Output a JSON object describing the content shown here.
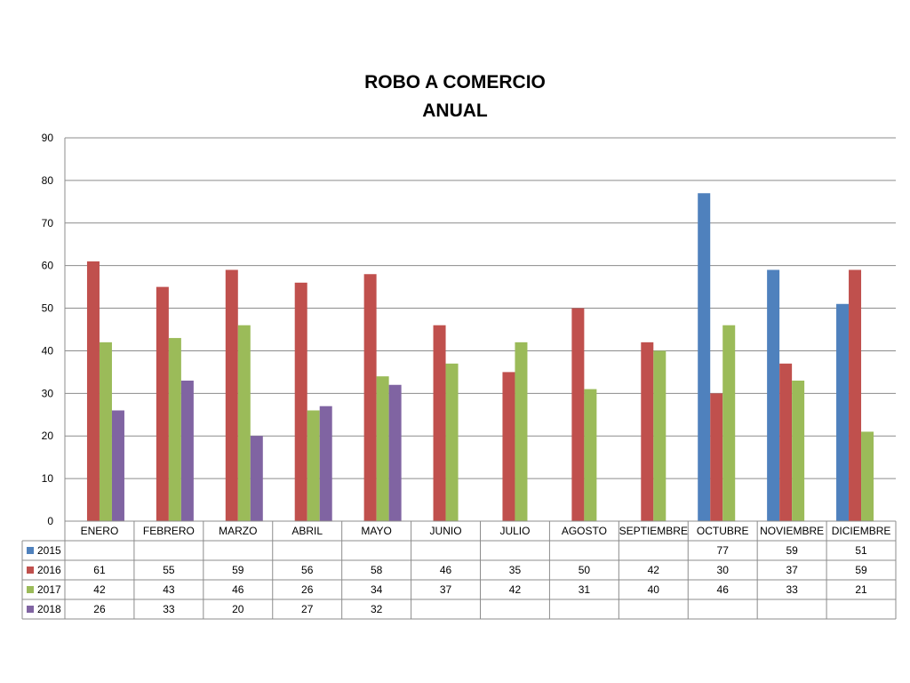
{
  "chart_data": {
    "type": "bar",
    "title": [
      "ROBO A COMERCIO",
      "ANUAL"
    ],
    "categories": [
      "ENERO",
      "FEBRERO",
      "MARZO",
      "ABRIL",
      "MAYO",
      "JUNIO",
      "JULIO",
      "AGOSTO",
      "SEPTIEMBRE",
      "OCTUBRE",
      "NOVIEMBRE",
      "DICIEMBRE"
    ],
    "series": [
      {
        "name": "2015",
        "color": "#4F81BD",
        "values": [
          null,
          null,
          null,
          null,
          null,
          null,
          null,
          null,
          null,
          77,
          59,
          51
        ]
      },
      {
        "name": "2016",
        "color": "#C0504D",
        "values": [
          61,
          55,
          59,
          56,
          58,
          46,
          35,
          50,
          42,
          30,
          37,
          59
        ]
      },
      {
        "name": "2017",
        "color": "#9BBB59",
        "values": [
          42,
          43,
          46,
          26,
          34,
          37,
          42,
          31,
          40,
          46,
          33,
          21
        ]
      },
      {
        "name": "2018",
        "color": "#8064A2",
        "values": [
          26,
          33,
          20,
          27,
          32,
          null,
          null,
          null,
          null,
          null,
          null,
          null
        ]
      }
    ],
    "ylim": [
      0,
      90
    ],
    "yticks": [
      0,
      10,
      20,
      30,
      40,
      50,
      60,
      70,
      80,
      90
    ],
    "grid": true,
    "legend_placement": "data-table"
  }
}
